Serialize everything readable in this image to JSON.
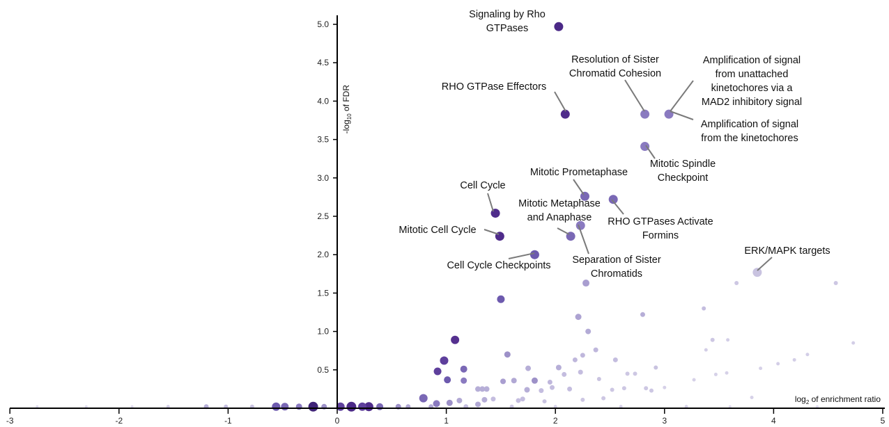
{
  "chart_data": {
    "type": "scatter",
    "title": "",
    "xlabel": "log2 of enrichment ratio",
    "ylabel": "-log10 of FDR",
    "xlim": [
      -3,
      5
    ],
    "ylim": [
      0,
      5
    ],
    "x_ticks": [
      -3,
      -2,
      -1,
      0,
      1,
      2,
      3,
      4,
      5
    ],
    "y_ticks": [
      0.5,
      1.0,
      1.5,
      2.0,
      2.5,
      3.0,
      3.5,
      4.0,
      4.5,
      5.0
    ],
    "labeled_points": [
      {
        "label": "Signaling by Rho GTPases",
        "x": 2.03,
        "y": 4.97,
        "color": "#4b2987"
      },
      {
        "label": "RHO GTPase Effectors",
        "x": 2.09,
        "y": 3.83,
        "color": "#4f2c8b"
      },
      {
        "label": "Resolution of Sister Chromatid Cohesion",
        "x": 2.82,
        "y": 3.83,
        "color": "#8a7ac0"
      },
      {
        "label": "Amplification of signal from unattached kinetochores via a MAD2 inhibitory signal",
        "x": 3.04,
        "y": 3.83,
        "color": "#8a7ac0"
      },
      {
        "label": "Amplification of signal from the kinetochores",
        "x": 3.04,
        "y": 3.83,
        "color": "#8a7ac0"
      },
      {
        "label": "Mitotic Spindle Checkpoint",
        "x": 2.82,
        "y": 3.41,
        "color": "#8a7ac0"
      },
      {
        "label": "Mitotic Prometaphase",
        "x": 2.27,
        "y": 2.76,
        "color": "#7a68b5"
      },
      {
        "label": "RHO GTPases Activate Formins",
        "x": 2.53,
        "y": 2.72,
        "color": "#7a68b5"
      },
      {
        "label": "Cell Cycle",
        "x": 1.45,
        "y": 2.54,
        "color": "#4f2c8b"
      },
      {
        "label": "Mitotic Metaphase and Anaphase",
        "x": 2.14,
        "y": 2.24,
        "color": "#7a68b5"
      },
      {
        "label": "Separation of Sister Chromatids",
        "x": 2.23,
        "y": 2.38,
        "color": "#8a7ac0"
      },
      {
        "label": "Mitotic Cell Cycle",
        "x": 1.49,
        "y": 2.24,
        "color": "#4f2c8b"
      },
      {
        "label": "Cell Cycle Checkpoints",
        "x": 1.81,
        "y": 2.0,
        "color": "#6d5aae"
      },
      {
        "label": "ERK/MAPK targets",
        "x": 3.85,
        "y": 1.77,
        "color": "#c9c3e0"
      }
    ],
    "points": [
      [
        2.28,
        1.63,
        10,
        "#a99ed0"
      ],
      [
        1.5,
        1.42,
        11,
        "#6d5aae"
      ],
      [
        2.8,
        1.22,
        7,
        "#b6aed7"
      ],
      [
        3.36,
        1.3,
        6,
        "#c4bddf"
      ],
      [
        3.66,
        1.63,
        6,
        "#cdc7e3"
      ],
      [
        4.57,
        1.63,
        6,
        "#cdc7e3"
      ],
      [
        2.21,
        1.19,
        9,
        "#ada3d2"
      ],
      [
        2.3,
        1.0,
        8,
        "#b3abd6"
      ],
      [
        1.08,
        0.89,
        12,
        "#55308f"
      ],
      [
        0.98,
        0.62,
        12,
        "#5e3f9c"
      ],
      [
        0.92,
        0.48,
        11,
        "#5e3f9c"
      ],
      [
        1.01,
        0.37,
        10,
        "#6d5aae"
      ],
      [
        1.16,
        0.51,
        10,
        "#7a68b5"
      ],
      [
        1.16,
        0.36,
        9,
        "#8a7ac0"
      ],
      [
        1.56,
        0.7,
        9,
        "#9d91c8"
      ],
      [
        1.81,
        0.36,
        9,
        "#9d91c8"
      ],
      [
        1.52,
        0.35,
        8,
        "#a99ed0"
      ],
      [
        1.62,
        0.36,
        8,
        "#b1a8d4"
      ],
      [
        1.75,
        0.52,
        8,
        "#b6aed7"
      ],
      [
        2.03,
        0.53,
        8,
        "#b6aed7"
      ],
      [
        2.18,
        0.63,
        7,
        "#bfb7dc"
      ],
      [
        2.25,
        0.69,
        7,
        "#bfb7dc"
      ],
      [
        2.37,
        0.76,
        7,
        "#bfb7dc"
      ],
      [
        2.55,
        0.63,
        7,
        "#c4bddf"
      ],
      [
        2.92,
        0.53,
        6,
        "#c9c3e0"
      ],
      [
        3.44,
        0.89,
        6,
        "#cdc7e3"
      ],
      [
        3.58,
        0.89,
        5,
        "#d3cee7"
      ],
      [
        3.38,
        0.76,
        5,
        "#d3cee7"
      ],
      [
        4.04,
        0.58,
        5,
        "#d3cee7"
      ],
      [
        4.19,
        0.63,
        5,
        "#d3cee7"
      ],
      [
        4.31,
        0.7,
        5,
        "#d3cee7"
      ],
      [
        4.73,
        0.85,
        5,
        "#d3cee7"
      ],
      [
        3.88,
        0.52,
        5,
        "#d6d1e8"
      ],
      [
        0.79,
        0.13,
        12,
        "#7a68b5"
      ],
      [
        0.91,
        0.06,
        10,
        "#8a7ac0"
      ],
      [
        1.03,
        0.07,
        9,
        "#9d91c8"
      ],
      [
        1.29,
        0.05,
        8,
        "#b1a8d4"
      ],
      [
        1.74,
        0.24,
        8,
        "#b6aed7"
      ],
      [
        1.95,
        0.34,
        7,
        "#bfb7dc"
      ],
      [
        2.08,
        0.44,
        7,
        "#c4bddf"
      ],
      [
        2.23,
        0.47,
        7,
        "#c4bddf"
      ],
      [
        1.7,
        0.12,
        7,
        "#c4bddf"
      ],
      [
        2.4,
        0.38,
        6,
        "#c9c3e0"
      ],
      [
        2.66,
        0.45,
        6,
        "#cdc7e3"
      ],
      [
        2.73,
        0.45,
        6,
        "#cdc7e3"
      ],
      [
        3.0,
        0.27,
        5,
        "#d6d1e8"
      ],
      [
        3.27,
        0.37,
        5,
        "#d6d1e8"
      ],
      [
        3.47,
        0.44,
        5,
        "#d6d1e8"
      ],
      [
        3.57,
        0.46,
        5,
        "#d6d1e8"
      ],
      [
        3.8,
        0.14,
        5,
        "#d6d1e8"
      ],
      [
        1.29,
        0.25,
        8,
        "#b6aed7"
      ],
      [
        1.33,
        0.25,
        8,
        "#b6aed7"
      ],
      [
        1.37,
        0.25,
        8,
        "#b6aed7"
      ],
      [
        1.97,
        0.27,
        7,
        "#c4bddf"
      ],
      [
        2.13,
        0.25,
        7,
        "#c4bddf"
      ],
      [
        1.87,
        0.23,
        7,
        "#c4bddf"
      ],
      [
        2.52,
        0.24,
        6,
        "#cdc7e3"
      ],
      [
        2.63,
        0.26,
        6,
        "#cdc7e3"
      ],
      [
        2.83,
        0.26,
        6,
        "#cdc7e3"
      ],
      [
        2.88,
        0.23,
        6,
        "#cdc7e3"
      ],
      [
        1.43,
        0.12,
        7,
        "#c4bddf"
      ],
      [
        1.66,
        0.1,
        7,
        "#c4bddf"
      ],
      [
        1.9,
        0.09,
        6,
        "#c9c3e0"
      ],
      [
        2.25,
        0.11,
        6,
        "#cdc7e3"
      ],
      [
        2.44,
        0.13,
        6,
        "#cdc7e3"
      ],
      [
        0.13,
        0.02,
        14,
        "#4b2987"
      ],
      [
        -0.22,
        0.02,
        14,
        "#3f2377"
      ],
      [
        0.29,
        0.02,
        13,
        "#4f2c8b"
      ],
      [
        0.23,
        0.02,
        12,
        "#5e3f9c"
      ],
      [
        0.03,
        0.02,
        12,
        "#5e3f9c"
      ],
      [
        -0.56,
        0.02,
        12,
        "#6d5aae"
      ],
      [
        -0.48,
        0.02,
        11,
        "#7a68b5"
      ],
      [
        -0.35,
        0.02,
        9,
        "#8a7ac0"
      ],
      [
        0.39,
        0.02,
        10,
        "#7a68b5"
      ],
      [
        0.56,
        0.02,
        8,
        "#9d91c8"
      ],
      [
        0.65,
        0.02,
        7,
        "#b1a8d4"
      ],
      [
        -1.2,
        0.02,
        7,
        "#b6aed7"
      ],
      [
        -1.02,
        0.02,
        6,
        "#c4bddf"
      ],
      [
        -1.55,
        0.02,
        5,
        "#d3cee7"
      ],
      [
        -1.88,
        0.02,
        4,
        "#dedaee"
      ],
      [
        -2.3,
        0.02,
        4,
        "#dedaee"
      ],
      [
        -2.75,
        0.02,
        4,
        "#dedaee"
      ],
      [
        -0.78,
        0.02,
        6,
        "#c9c3e0"
      ],
      [
        -0.12,
        0.02,
        8,
        "#9d91c8"
      ],
      [
        1.18,
        0.02,
        7,
        "#c4bddf"
      ],
      [
        1.6,
        0.02,
        6,
        "#cdc7e3"
      ],
      [
        2.0,
        0.02,
        5,
        "#d6d1e8"
      ],
      [
        2.6,
        0.02,
        5,
        "#d6d1e8"
      ],
      [
        3.2,
        0.02,
        5,
        "#d6d1e8"
      ],
      [
        4.4,
        0.02,
        4,
        "#dedaee"
      ],
      [
        1.35,
        0.11,
        8,
        "#b6aed7"
      ],
      [
        1.12,
        0.1,
        8,
        "#b1a8d4"
      ],
      [
        3.6,
        0.02,
        4,
        "#dedaee"
      ],
      [
        0.86,
        0.02,
        7,
        "#b1a8d4"
      ]
    ]
  },
  "annotations": {
    "signaling_by_rho": [
      "Signaling by Rho",
      "GTPases"
    ],
    "rho_effectors": [
      "RHO GTPase Effectors"
    ],
    "resolution": [
      "Resolution of Sister",
      "Chromatid Cohesion"
    ],
    "amplification_mad2": [
      "Amplification of signal",
      "from unattached",
      "kinetochores via a",
      "MAD2 inhibitory signal"
    ],
    "amplification_kinetochores": [
      "Amplification of signal",
      "from the kinetochores"
    ],
    "spindle_checkpoint": [
      "Mitotic Spindle",
      "Checkpoint"
    ],
    "prometaphase": [
      "Mitotic Prometaphase"
    ],
    "formins": [
      "RHO GTPases Activate",
      "Formins"
    ],
    "cell_cycle": [
      "Cell Cycle"
    ],
    "metaphase": [
      "Mitotic Metaphase",
      "and Anaphase"
    ],
    "separation": [
      "Separation of Sister",
      "Chromatids"
    ],
    "mitotic_cell_cycle": [
      "Mitotic Cell Cycle"
    ],
    "checkpoints": [
      "Cell Cycle Checkpoints"
    ],
    "erk": [
      "ERK/MAPK targets"
    ]
  },
  "axes": {
    "x_title_main": "log",
    "x_title_sub": "2",
    "x_title_rest": " of enrichment ratio",
    "y_title_pre": "-log",
    "y_title_sub": "10",
    "y_title_rest": " of FDR",
    "x_tick_labels": [
      "-3",
      "-2",
      "-1",
      "0",
      "1",
      "2",
      "3",
      "4",
      "5"
    ],
    "y_tick_labels": [
      "0.5",
      "1.0",
      "1.5",
      "2.0",
      "2.5",
      "3.0",
      "3.5",
      "4.0",
      "4.5",
      "5.0"
    ]
  }
}
